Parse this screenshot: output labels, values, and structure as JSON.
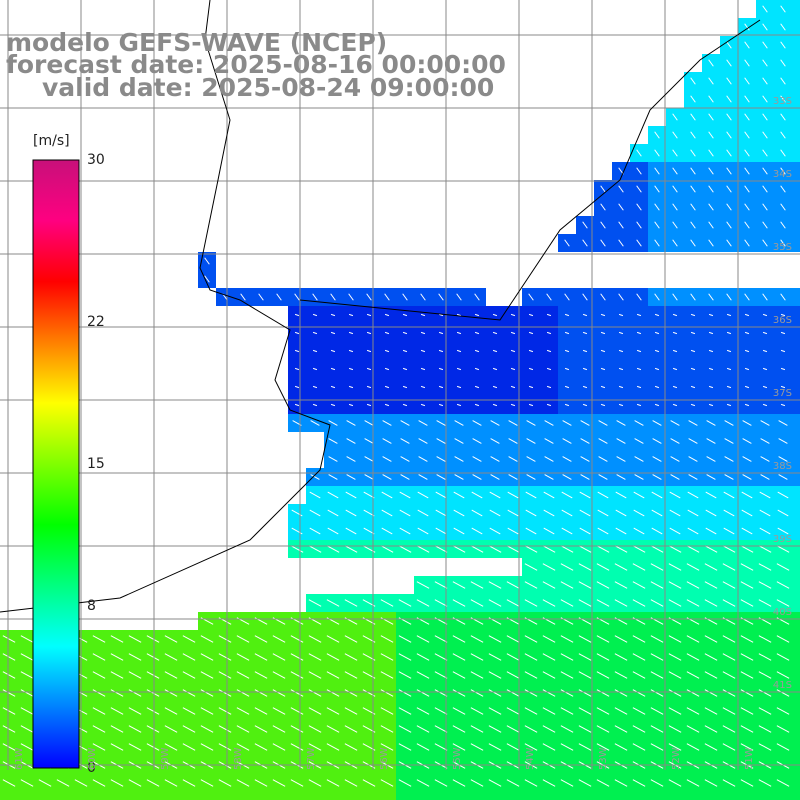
{
  "title": {
    "line1": "modelo GEFS-WAVE (NCEP)",
    "line2": "forecast date: 2025-08-16 00:00:00",
    "line3": "valid date: 2025-08-24 09:00:00"
  },
  "colorbar": {
    "unit": "[m/s]",
    "ticks": [
      {
        "label": "30",
        "value": 30
      },
      {
        "label": "22",
        "value": 22
      },
      {
        "label": "15",
        "value": 15
      },
      {
        "label": "8",
        "value": 8
      },
      {
        "label": "0",
        "value": 0
      }
    ],
    "range": [
      0,
      30
    ],
    "colors": [
      "#0000ff",
      "#0080ff",
      "#00ffff",
      "#00ff80",
      "#00ff00",
      "#80ff00",
      "#ffff00",
      "#ff8000",
      "#ff0000",
      "#ff0080",
      "#c8107a"
    ]
  },
  "lat_labels": [
    "33S",
    "34S",
    "35S",
    "36S",
    "37S",
    "38S",
    "39S",
    "40S",
    "41S"
  ],
  "lon_labels": [
    "61W",
    "60W",
    "59W",
    "58W",
    "57W",
    "56W",
    "55W",
    "54W",
    "53W",
    "52W",
    "51W"
  ],
  "field": {
    "variable": "wind speed",
    "colors": {
      "land": "#ffffff",
      "deep_blue": "#0028e6",
      "blue": "#0050f0",
      "light_blue": "#0090ff",
      "cyan": "#00e4ff",
      "aqua_green": "#00ffb0",
      "green": "#00f050",
      "lime": "#50f010",
      "grid": "#888888",
      "arrow": "#ffffff"
    }
  }
}
